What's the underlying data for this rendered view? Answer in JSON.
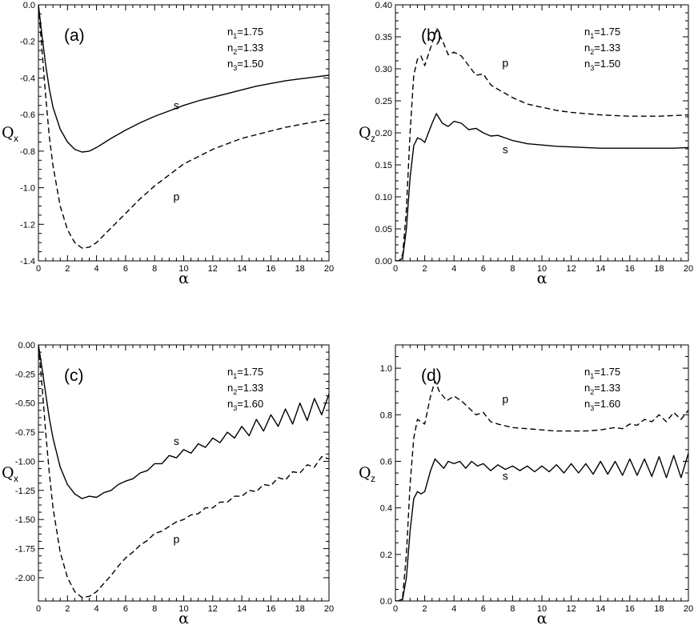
{
  "figure": {
    "type": "multi-panel line chart"
  },
  "chart_data": [
    {
      "type": "line",
      "panel_label": "(a)",
      "xlabel": "α",
      "ylabel": "Q",
      "ylabel_sub": "x",
      "xlim": [
        0,
        20
      ],
      "ylim": [
        -1.4,
        0.0
      ],
      "xticks": [
        0,
        2,
        4,
        6,
        8,
        10,
        12,
        14,
        16,
        18,
        20
      ],
      "yticks": [
        0.0,
        -0.2,
        -0.4,
        -0.6,
        -0.8,
        -1.0,
        -1.2,
        -1.4
      ],
      "ytick_decimals": 1,
      "params": [
        {
          "name": "n",
          "sub": "1",
          "value": "=1.75"
        },
        {
          "name": "n",
          "sub": "2",
          "value": "=1.33"
        },
        {
          "name": "n",
          "sub": "3",
          "value": "=1.50"
        }
      ],
      "series": [
        {
          "name": "s",
          "style": "solid",
          "label_at": [
            9.5,
            -0.57
          ],
          "x": [
            0,
            0.25,
            0.5,
            0.75,
            1.0,
            1.5,
            2.0,
            2.5,
            3.0,
            3.5,
            4.0,
            4.5,
            5.0,
            6.0,
            7.0,
            8.0,
            9.0,
            10.0,
            11.0,
            12.0,
            13.0,
            14.0,
            15.0,
            16.0,
            17.0,
            18.0,
            19.0,
            20.0
          ],
          "y": [
            0.0,
            -0.17,
            -0.33,
            -0.46,
            -0.56,
            -0.68,
            -0.75,
            -0.79,
            -0.805,
            -0.8,
            -0.78,
            -0.755,
            -0.73,
            -0.685,
            -0.645,
            -0.61,
            -0.58,
            -0.55,
            -0.525,
            -0.505,
            -0.485,
            -0.465,
            -0.445,
            -0.43,
            -0.415,
            -0.405,
            -0.395,
            -0.385
          ]
        },
        {
          "name": "p",
          "style": "dashed",
          "label_at": [
            9.5,
            -1.07
          ],
          "x": [
            0,
            0.25,
            0.5,
            0.75,
            1.0,
            1.5,
            2.0,
            2.5,
            3.0,
            3.5,
            4.0,
            4.5,
            5.0,
            6.0,
            7.0,
            8.0,
            9.0,
            10.0,
            11.0,
            12.0,
            13.0,
            14.0,
            15.0,
            16.0,
            17.0,
            18.0,
            19.0,
            20.0
          ],
          "y": [
            0.0,
            -0.25,
            -0.5,
            -0.72,
            -0.88,
            -1.1,
            -1.23,
            -1.3,
            -1.33,
            -1.325,
            -1.3,
            -1.26,
            -1.22,
            -1.14,
            -1.06,
            -0.99,
            -0.93,
            -0.87,
            -0.83,
            -0.79,
            -0.76,
            -0.73,
            -0.71,
            -0.69,
            -0.67,
            -0.655,
            -0.64,
            -0.625
          ]
        }
      ]
    },
    {
      "type": "line",
      "panel_label": "(b)",
      "xlabel": "α",
      "ylabel": "Q",
      "ylabel_sub": "z",
      "xlim": [
        0,
        20
      ],
      "ylim": [
        0.0,
        0.4
      ],
      "xticks": [
        0,
        2,
        4,
        6,
        8,
        10,
        12,
        14,
        16,
        18,
        20
      ],
      "yticks": [
        0.0,
        0.05,
        0.1,
        0.15,
        0.2,
        0.25,
        0.3,
        0.35,
        0.4
      ],
      "ytick_decimals": 2,
      "params": [
        {
          "name": "n",
          "sub": "1",
          "value": "=1.75"
        },
        {
          "name": "n",
          "sub": "2",
          "value": "=1.33"
        },
        {
          "name": "n",
          "sub": "3",
          "value": "=1.50"
        }
      ],
      "series": [
        {
          "name": "p",
          "style": "dashed",
          "label_at": [
            7.5,
            0.303
          ],
          "x": [
            0,
            0.25,
            0.5,
            0.75,
            1.0,
            1.25,
            1.5,
            1.75,
            2.0,
            2.5,
            2.8,
            3.2,
            3.6,
            4.0,
            4.5,
            5.0,
            5.5,
            6.0,
            6.5,
            7.0,
            8.0,
            9.0,
            10.0,
            11.0,
            12.0,
            13.0,
            14.0,
            15.0,
            16.0,
            17.0,
            18.0,
            19.0,
            20.0
          ],
          "y": [
            0.0,
            0.0,
            0.01,
            0.08,
            0.2,
            0.29,
            0.315,
            0.32,
            0.305,
            0.34,
            0.36,
            0.345,
            0.322,
            0.326,
            0.32,
            0.305,
            0.29,
            0.292,
            0.275,
            0.268,
            0.255,
            0.245,
            0.24,
            0.235,
            0.232,
            0.23,
            0.228,
            0.227,
            0.226,
            0.226,
            0.226,
            0.227,
            0.228
          ]
        },
        {
          "name": "s",
          "style": "solid",
          "label_at": [
            7.5,
            0.168
          ],
          "x": [
            0,
            0.25,
            0.5,
            0.75,
            1.0,
            1.25,
            1.5,
            1.75,
            2.0,
            2.5,
            2.8,
            3.2,
            3.6,
            4.0,
            4.5,
            5.0,
            5.5,
            6.0,
            6.5,
            7.0,
            8.0,
            9.0,
            10.0,
            11.0,
            12.0,
            13.0,
            14.0,
            15.0,
            16.0,
            17.0,
            18.0,
            19.0,
            20.0
          ],
          "y": [
            0.0,
            0.0,
            0.005,
            0.05,
            0.13,
            0.18,
            0.192,
            0.19,
            0.185,
            0.215,
            0.23,
            0.215,
            0.21,
            0.218,
            0.215,
            0.205,
            0.207,
            0.2,
            0.195,
            0.196,
            0.188,
            0.183,
            0.181,
            0.179,
            0.178,
            0.177,
            0.176,
            0.176,
            0.176,
            0.176,
            0.176,
            0.176,
            0.177
          ]
        }
      ]
    },
    {
      "type": "line",
      "panel_label": "(c)",
      "xlabel": "α",
      "ylabel": "Q",
      "ylabel_sub": "x",
      "xlim": [
        0,
        20
      ],
      "ylim": [
        -2.2,
        0.0
      ],
      "xticks": [
        0,
        2,
        4,
        6,
        8,
        10,
        12,
        14,
        16,
        18,
        20
      ],
      "yticks": [
        0.0,
        -0.25,
        -0.5,
        -0.75,
        -1.0,
        -1.25,
        -1.5,
        -1.75,
        -2.0
      ],
      "ytick_decimals": 2,
      "params": [
        {
          "name": "n",
          "sub": "1",
          "value": "=1.75"
        },
        {
          "name": "n",
          "sub": "2",
          "value": "=1.33"
        },
        {
          "name": "n",
          "sub": "3",
          "value": "=1.60"
        }
      ],
      "series": [
        {
          "name": "s",
          "style": "solid",
          "label_at": [
            9.5,
            -0.86
          ],
          "x": [
            0,
            0.25,
            0.5,
            0.75,
            1.0,
            1.5,
            2.0,
            2.5,
            3.0,
            3.5,
            4.0,
            4.5,
            5.0,
            5.5,
            6.0,
            6.5,
            7.0,
            7.5,
            8.0,
            8.5,
            9.0,
            9.5,
            10.0,
            10.5,
            11.0,
            11.5,
            12.0,
            12.5,
            13.0,
            13.5,
            14.0,
            14.5,
            15.0,
            15.5,
            16.0,
            16.5,
            17.0,
            17.5,
            18.0,
            18.5,
            19.0,
            19.5,
            20.0
          ],
          "y": [
            0.0,
            -0.2,
            -0.42,
            -0.63,
            -0.8,
            -1.05,
            -1.2,
            -1.28,
            -1.32,
            -1.3,
            -1.31,
            -1.27,
            -1.25,
            -1.2,
            -1.17,
            -1.15,
            -1.1,
            -1.08,
            -1.02,
            -1.02,
            -0.95,
            -0.97,
            -0.9,
            -0.93,
            -0.85,
            -0.88,
            -0.8,
            -0.84,
            -0.75,
            -0.8,
            -0.7,
            -0.78,
            -0.64,
            -0.74,
            -0.6,
            -0.7,
            -0.55,
            -0.68,
            -0.5,
            -0.65,
            -0.46,
            -0.6,
            -0.42
          ]
        },
        {
          "name": "p",
          "style": "dashed",
          "label_at": [
            9.5,
            -1.7
          ],
          "x": [
            0,
            0.25,
            0.5,
            0.75,
            1.0,
            1.5,
            2.0,
            2.5,
            3.0,
            3.5,
            4.0,
            4.5,
            5.0,
            5.5,
            6.0,
            6.5,
            7.0,
            7.5,
            8.0,
            8.5,
            9.0,
            9.5,
            10.0,
            10.5,
            11.0,
            11.5,
            12.0,
            12.5,
            13.0,
            13.5,
            14.0,
            14.5,
            15.0,
            15.5,
            16.0,
            16.5,
            17.0,
            17.5,
            18.0,
            18.5,
            19.0,
            19.5,
            20.0
          ],
          "y": [
            0.0,
            -0.35,
            -0.75,
            -1.1,
            -1.4,
            -1.78,
            -2.0,
            -2.12,
            -2.17,
            -2.16,
            -2.12,
            -2.05,
            -1.98,
            -1.9,
            -1.83,
            -1.78,
            -1.72,
            -1.68,
            -1.62,
            -1.6,
            -1.56,
            -1.52,
            -1.5,
            -1.46,
            -1.45,
            -1.4,
            -1.4,
            -1.35,
            -1.35,
            -1.3,
            -1.3,
            -1.25,
            -1.26,
            -1.2,
            -1.21,
            -1.14,
            -1.16,
            -1.09,
            -1.1,
            -1.03,
            -1.05,
            -0.96,
            -0.98
          ]
        }
      ]
    },
    {
      "type": "line",
      "panel_label": "(d)",
      "xlabel": "α",
      "ylabel": "Q",
      "ylabel_sub": "z",
      "xlim": [
        0,
        20
      ],
      "ylim": [
        0.0,
        1.1
      ],
      "xticks": [
        0,
        2,
        4,
        6,
        8,
        10,
        12,
        14,
        16,
        18,
        20
      ],
      "yticks": [
        0.0,
        0.2,
        0.4,
        0.6,
        0.8,
        1.0
      ],
      "ytick_decimals": 1,
      "params": [
        {
          "name": "n",
          "sub": "1",
          "value": "=1.75"
        },
        {
          "name": "n",
          "sub": "2",
          "value": "=1.33"
        },
        {
          "name": "n",
          "sub": "3",
          "value": "=1.60"
        }
      ],
      "series": [
        {
          "name": "p",
          "style": "dashed",
          "label_at": [
            7.5,
            0.85
          ],
          "x": [
            0,
            0.25,
            0.5,
            0.75,
            1.0,
            1.25,
            1.5,
            1.75,
            2.0,
            2.4,
            2.7,
            3.0,
            3.5,
            4.0,
            4.5,
            5.0,
            5.5,
            6.0,
            6.5,
            7.0,
            8.0,
            9.0,
            10.0,
            11.0,
            12.0,
            13.0,
            14.0,
            15.0,
            15.5,
            16.0,
            16.5,
            17.0,
            17.5,
            18.0,
            18.5,
            19.0,
            19.5,
            20.0
          ],
          "y": [
            0.0,
            0.0,
            0.02,
            0.2,
            0.5,
            0.7,
            0.78,
            0.77,
            0.76,
            0.88,
            0.945,
            0.9,
            0.86,
            0.88,
            0.86,
            0.83,
            0.8,
            0.81,
            0.77,
            0.76,
            0.745,
            0.74,
            0.735,
            0.73,
            0.73,
            0.73,
            0.735,
            0.745,
            0.74,
            0.76,
            0.755,
            0.78,
            0.77,
            0.8,
            0.77,
            0.81,
            0.78,
            0.82
          ]
        },
        {
          "name": "s",
          "style": "solid",
          "label_at": [
            7.5,
            0.52
          ],
          "x": [
            0,
            0.25,
            0.5,
            0.75,
            1.0,
            1.25,
            1.5,
            1.75,
            2.0,
            2.4,
            2.7,
            3.0,
            3.3,
            3.6,
            4.0,
            4.4,
            4.8,
            5.2,
            5.6,
            6.0,
            6.5,
            7.0,
            7.5,
            8.0,
            8.5,
            9.0,
            9.5,
            10.0,
            10.5,
            11.0,
            11.5,
            12.0,
            12.5,
            13.0,
            13.5,
            14.0,
            14.5,
            15.0,
            15.5,
            16.0,
            16.5,
            17.0,
            17.5,
            18.0,
            18.5,
            19.0,
            19.5,
            20.0
          ],
          "y": [
            0.0,
            0.0,
            0.01,
            0.1,
            0.3,
            0.44,
            0.47,
            0.46,
            0.47,
            0.56,
            0.61,
            0.59,
            0.57,
            0.6,
            0.59,
            0.6,
            0.57,
            0.6,
            0.58,
            0.59,
            0.56,
            0.585,
            0.565,
            0.58,
            0.56,
            0.58,
            0.555,
            0.58,
            0.555,
            0.585,
            0.55,
            0.59,
            0.55,
            0.59,
            0.545,
            0.6,
            0.545,
            0.6,
            0.54,
            0.61,
            0.54,
            0.61,
            0.535,
            0.62,
            0.53,
            0.625,
            0.53,
            0.635
          ]
        }
      ]
    }
  ]
}
